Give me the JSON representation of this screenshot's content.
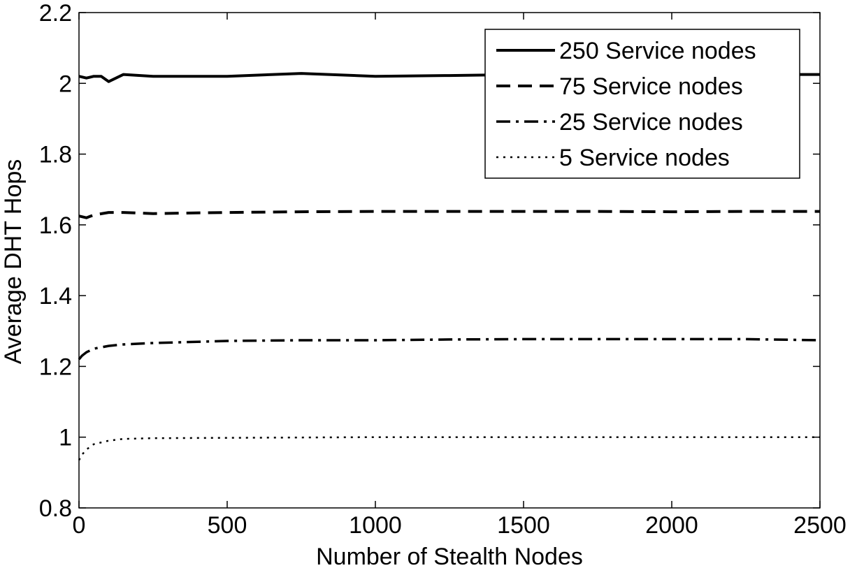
{
  "chart_data": {
    "type": "line",
    "title": "",
    "xlabel": "Number of Stealth Nodes",
    "ylabel": "Average DHT Hops",
    "xlim": [
      0,
      2500
    ],
    "ylim": [
      0.8,
      2.2
    ],
    "xticks": [
      0,
      500,
      1000,
      1500,
      2000,
      2500
    ],
    "xtick_labels": [
      "0",
      "500",
      "1000",
      "1500",
      "2000",
      "2500"
    ],
    "yticks": [
      0.8,
      1.0,
      1.2,
      1.4,
      1.6,
      1.8,
      2.0,
      2.2
    ],
    "ytick_labels": [
      "0.8",
      "1",
      "1.2",
      "1.4",
      "1.6",
      "1.8",
      "2",
      "2.2"
    ],
    "grid": false,
    "legend_position": "top-right",
    "series": [
      {
        "name": "250 Service nodes",
        "line_style": "solid",
        "x": [
          0,
          25,
          50,
          75,
          100,
          150,
          250,
          500,
          750,
          1000,
          1250,
          1500,
          1750,
          2000,
          2250,
          2500
        ],
        "y": [
          2.02,
          2.015,
          2.02,
          2.02,
          2.005,
          2.025,
          2.02,
          2.02,
          2.028,
          2.02,
          2.022,
          2.025,
          2.02,
          2.025,
          2.025,
          2.025
        ]
      },
      {
        "name": "75 Service nodes",
        "line_style": "dashed",
        "x": [
          0,
          25,
          50,
          100,
          150,
          250,
          500,
          750,
          1000,
          1250,
          1500,
          1750,
          2000,
          2250,
          2500
        ],
        "y": [
          1.625,
          1.62,
          1.628,
          1.635,
          1.635,
          1.632,
          1.635,
          1.637,
          1.638,
          1.638,
          1.638,
          1.638,
          1.637,
          1.638,
          1.638
        ]
      },
      {
        "name": "25 Service nodes",
        "line_style": "dashdot",
        "x": [
          0,
          10,
          25,
          50,
          100,
          150,
          250,
          500,
          750,
          1000,
          1250,
          1500,
          1750,
          2000,
          2250,
          2500
        ],
        "y": [
          1.22,
          1.23,
          1.24,
          1.25,
          1.258,
          1.262,
          1.266,
          1.272,
          1.274,
          1.274,
          1.276,
          1.277,
          1.277,
          1.277,
          1.277,
          1.274
        ]
      },
      {
        "name": "5 Service nodes",
        "line_style": "dotted",
        "x": [
          0,
          10,
          25,
          50,
          100,
          150,
          250,
          500,
          750,
          1000,
          1500,
          2000,
          2500
        ],
        "y": [
          0.935,
          0.95,
          0.965,
          0.98,
          0.99,
          0.995,
          0.997,
          0.998,
          0.999,
          1.0,
          1.0,
          1.0,
          1.0
        ]
      }
    ]
  }
}
